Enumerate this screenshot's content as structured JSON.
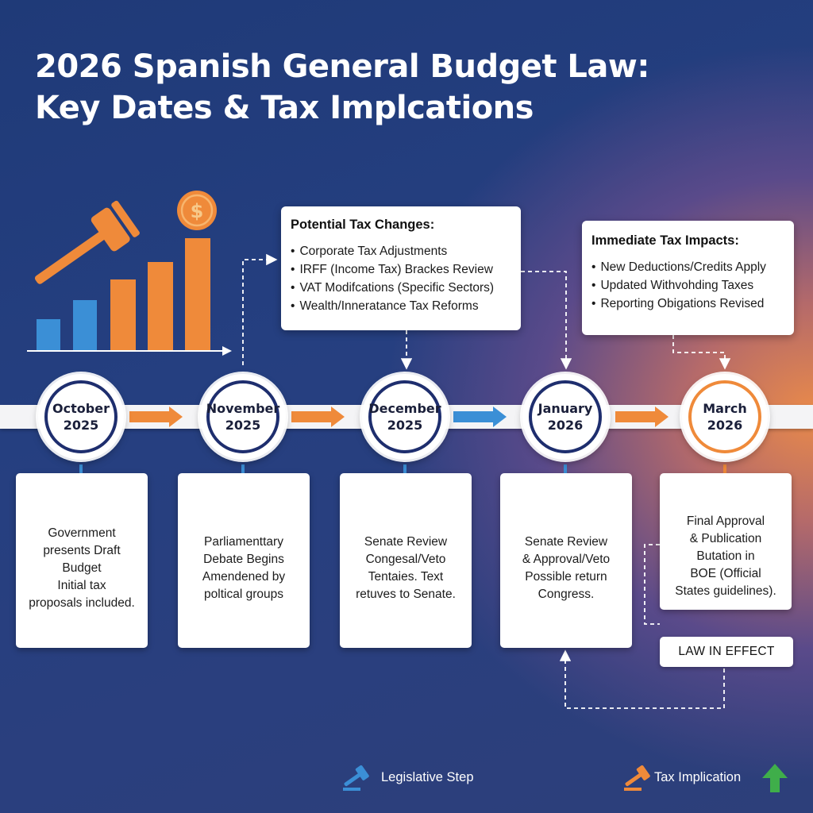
{
  "header": {
    "title_line1": "2026 Spanish General Budget Law:",
    "title_line2": "Key Dates & Tax Implcations"
  },
  "timeline": [
    {
      "line1": "October",
      "line2": "2025",
      "card": [
        "Government",
        "presents Draft Budget",
        "Initial tax",
        "proposals included."
      ]
    },
    {
      "line1": "November",
      "line2": "2025",
      "card": [
        "Parliamenttary",
        "Debate Begins",
        "Amendened by",
        "poltical groups"
      ]
    },
    {
      "line1": "December",
      "line2": "2025",
      "card": [
        "Senate Review",
        "Congesal/Veto",
        "Tentaies. Text",
        "retuves to Senate."
      ]
    },
    {
      "line1": "January",
      "line2": "2026",
      "card": [
        "Senate Review",
        "& Approval/Veto",
        "Possible return",
        "Congress."
      ]
    },
    {
      "line1": "March",
      "line2": "2026",
      "card": [
        "Final Approval",
        "& Publication",
        "Butation in",
        "BOE (Official",
        "States guidelines)."
      ]
    }
  ],
  "potential_tax_changes": {
    "title": "Potential Tax Changes:",
    "items": [
      "Corporate Tax Adjustments",
      "IRFF (Income Tax) Brackes Review",
      "VAT Modifcations (Specific Sectors)",
      "Wealth/Inneratance Tax Reforms"
    ]
  },
  "immediate_tax_impacts": {
    "title": "Immediate Tax Impacts:",
    "items": [
      "New Deductions/Credits Apply",
      "Updated Withvohding Taxes",
      "Reporting Obigations Revised"
    ]
  },
  "law_in_effect": "LAW IN EFFECT",
  "legend": {
    "legislative": "Legislative Step",
    "tax": "Tax Implication"
  },
  "colors": {
    "navy": "#1e2e6e",
    "orange": "#ef8a3a",
    "blue": "#3b8fd6",
    "green": "#3fae4a"
  },
  "icons": [
    "gavel-icon",
    "bar-chart-icon",
    "dollar-coin-icon",
    "arrow-down-icon",
    "arrow-right-icon",
    "arrow-up-icon"
  ]
}
